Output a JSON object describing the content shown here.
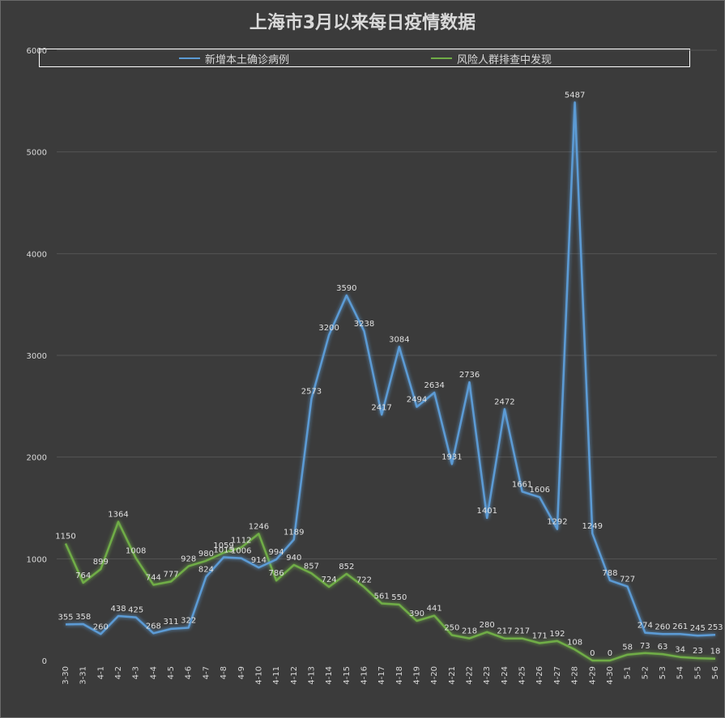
{
  "chart_data": {
    "type": "line",
    "title": "上海市3月以来每日疫情数据",
    "ylim": [
      0,
      6000
    ],
    "yticks": [
      0,
      1000,
      2000,
      3000,
      4000,
      5000,
      6000
    ],
    "grid": true,
    "legend_position": "top",
    "categories": [
      "3-30",
      "3-31",
      "4-1",
      "4-2",
      "4-3",
      "4-4",
      "4-5",
      "4-6",
      "4-7",
      "4-8",
      "4-9",
      "4-10",
      "4-11",
      "4-12",
      "4-13",
      "4-14",
      "4-15",
      "4-16",
      "4-17",
      "4-18",
      "4-19",
      "4-20",
      "4-21",
      "4-22",
      "4-23",
      "4-24",
      "4-25",
      "4-26",
      "4-27",
      "4-28",
      "4-29",
      "4-30",
      "5-1",
      "5-2",
      "5-3",
      "5-4",
      "5-5",
      "5-6"
    ],
    "series": [
      {
        "name": "新增本土确诊病例",
        "color": "#5b9bd5",
        "values": [
          355,
          358,
          260,
          438,
          425,
          268,
          311,
          322,
          824,
          1015,
          1006,
          914,
          994,
          1189,
          2573,
          3200,
          3590,
          3238,
          2417,
          3084,
          2494,
          2634,
          1931,
          2736,
          1401,
          2472,
          1661,
          1606,
          1292,
          5487,
          1249,
          788,
          727,
          274,
          260,
          261,
          245,
          253
        ]
      },
      {
        "name": "风险人群排查中发现",
        "color": "#70ad47",
        "values": [
          1150,
          764,
          899,
          1364,
          1008,
          744,
          777,
          928,
          980,
          1059,
          1112,
          1246,
          786,
          940,
          857,
          724,
          852,
          722,
          561,
          550,
          390,
          441,
          250,
          218,
          280,
          217,
          217,
          171,
          192,
          108,
          0,
          0,
          58,
          73,
          63,
          34,
          23,
          18
        ]
      }
    ]
  }
}
